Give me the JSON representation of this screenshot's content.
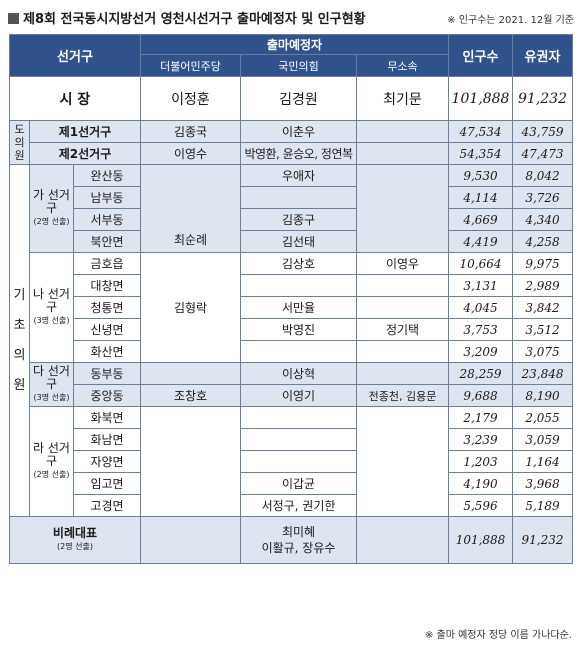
{
  "title": "제8회 전국동시지방선거 영천시선거구 출마예정자 및 인구현황",
  "basis_note": "※ 인구수는 2021. 12월 기준",
  "footnote": "※ 출마 예정자 정당 이름 가나다순.",
  "headers": {
    "district": "선거구",
    "candidates": "출마예정자",
    "parties": [
      "더불어민주당",
      "국민의힘",
      "무소속"
    ],
    "population": "인구수",
    "voters": "유권자"
  },
  "mayor": {
    "label": "시 장",
    "dem": "이정훈",
    "ppp": "김경원",
    "ind": "최기문",
    "pop": "101,888",
    "voters": "91,232"
  },
  "provincial": {
    "label": "도의원",
    "rows": [
      {
        "district": "제1선거구",
        "dem": "김종국",
        "ppp": "이춘우",
        "ind": "",
        "pop": "47,534",
        "voters": "43,759"
      },
      {
        "district": "제2선거구",
        "dem": "이영수",
        "ppp": "박영환, 윤승오, 정연복",
        "ind": "",
        "pop": "54,354",
        "voters": "47,473"
      }
    ]
  },
  "council": {
    "label": "기초의원",
    "groups": [
      {
        "name": "가 선거구",
        "seats": "(2명 선출)",
        "dem": "최순례",
        "ppp": "",
        "ind": "",
        "towns": [
          {
            "name": "완산동",
            "ppp": "우애자",
            "pop": "9,530",
            "voters": "8,042"
          },
          {
            "name": "남부동",
            "ppp": "",
            "pop": "4,114",
            "voters": "3,726"
          },
          {
            "name": "서부동",
            "ppp": "김종구",
            "pop": "4,669",
            "voters": "4,340"
          },
          {
            "name": "북안면",
            "ppp": "김선태",
            "pop": "4,419",
            "voters": "4,258"
          }
        ]
      },
      {
        "name": "나 선거구",
        "seats": "(3명 선출)",
        "dem": "김형락",
        "ppp": "",
        "ind": "",
        "towns": [
          {
            "name": "금호읍",
            "ppp": "김상호",
            "ind": "이영우",
            "pop": "10,664",
            "voters": "9,975"
          },
          {
            "name": "대창면",
            "ppp": "",
            "ind": "",
            "pop": "3,131",
            "voters": "2,989"
          },
          {
            "name": "청통면",
            "ppp": "서만율",
            "ind": "",
            "pop": "4,045",
            "voters": "3,842"
          },
          {
            "name": "신녕면",
            "ppp": "박영진",
            "ind": "정기택",
            "pop": "3,753",
            "voters": "3,512"
          },
          {
            "name": "화산면",
            "ppp": "",
            "ind": "",
            "pop": "3,209",
            "voters": "3,075"
          }
        ]
      },
      {
        "name": "다 선거구",
        "seats": "(3명 선출)",
        "towns": [
          {
            "name": "동부동",
            "dem": "",
            "ppp": "이상혁",
            "ind": "",
            "pop": "28,259",
            "voters": "23,848"
          },
          {
            "name": "중앙동",
            "dem": "조창호",
            "ppp": "이영기",
            "ind": "전종천, 김용문",
            "pop": "9,688",
            "voters": "8,190"
          }
        ]
      },
      {
        "name": "라 선거구",
        "seats": "(2명 선출)",
        "towns": [
          {
            "name": "화북면",
            "ppp": "",
            "pop": "2,179",
            "voters": "2,055"
          },
          {
            "name": "화남면",
            "ppp": "",
            "pop": "3,239",
            "voters": "3,059"
          },
          {
            "name": "자양면",
            "ppp": "",
            "pop": "1,203",
            "voters": "1,164"
          },
          {
            "name": "임고면",
            "ppp": "이갑균",
            "pop": "4,190",
            "voters": "3,968"
          },
          {
            "name": "고경면",
            "ppp": "서정구, 권기한",
            "pop": "5,596",
            "voters": "5,189"
          }
        ]
      }
    ]
  },
  "proportional": {
    "label": "비례대표",
    "seats": "(2명 선출)",
    "ppp_line1": "최미혜",
    "ppp_line2": "이활규, 장유수",
    "pop": "101,888",
    "voters": "91,232"
  }
}
